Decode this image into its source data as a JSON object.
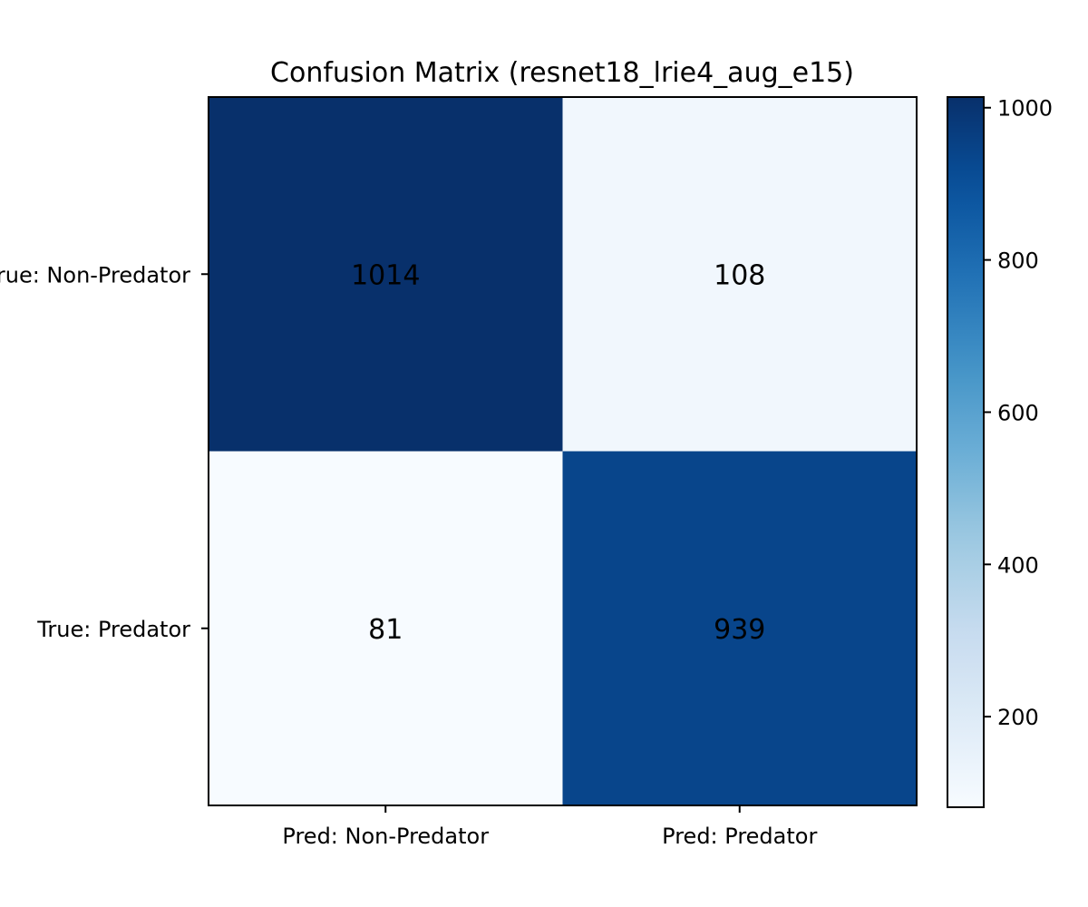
{
  "chart_data": {
    "type": "heatmap",
    "title": "Confusion Matrix (resnet18_lrie4_aug_e15)",
    "row_labels": [
      "True: Non-Predator",
      "True: Predator"
    ],
    "col_labels": [
      "Pred: Non-Predator",
      "Pred: Predator"
    ],
    "values": [
      [
        1014,
        108
      ],
      [
        81,
        939
      ]
    ],
    "colormap": "Blues",
    "color_range": [
      81,
      1014
    ],
    "colorbar_ticks": [
      200,
      400,
      600,
      800,
      1000
    ],
    "colorbar_tick_labels": [
      "200",
      "400",
      "600",
      "800",
      "1000"
    ],
    "grid": false,
    "colorbar_position": "right"
  }
}
